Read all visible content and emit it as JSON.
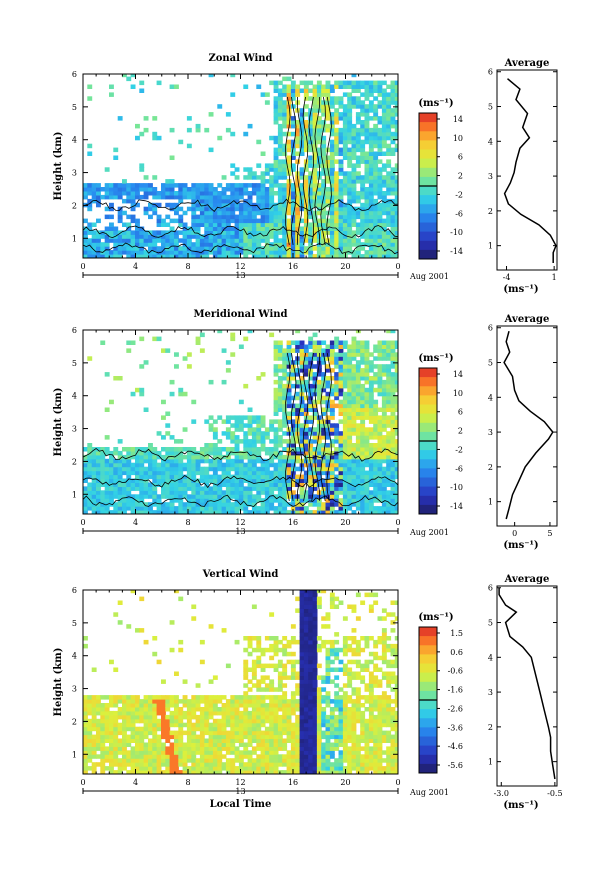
{
  "chart_data": [
    {
      "type": "heatmap",
      "title": "Zonal Wind",
      "ylabel": "Height (km)",
      "xlabel": "",
      "xlim": [
        0,
        24
      ],
      "ylim": [
        0.4,
        6
      ],
      "xticks": [
        "0",
        "4",
        "8",
        "12",
        "16",
        "20",
        "0"
      ],
      "yticks": [
        "1",
        "2",
        "3",
        "4",
        "5",
        "6"
      ],
      "date_bar": {
        "center": "13",
        "right": "Aug 2001"
      },
      "colorbar": {
        "unit": "(ms⁻¹)",
        "labels": [
          "14",
          "10",
          "6",
          "2",
          "-2",
          "-6",
          "-10",
          "-14"
        ],
        "range": [
          -16,
          16
        ]
      },
      "average": {
        "title": "Average",
        "xlabel": "(ms⁻¹)",
        "xticks": [
          "-4",
          "1"
        ],
        "xlim": [
          -5,
          1.3
        ],
        "profile": [
          [
            0.5,
            0.9
          ],
          [
            0.8,
            0.9
          ],
          [
            1.0,
            1.2
          ],
          [
            1.3,
            0.6
          ],
          [
            1.6,
            -0.6
          ],
          [
            1.9,
            -2.5
          ],
          [
            2.2,
            -3.8
          ],
          [
            2.5,
            -4.2
          ],
          [
            2.8,
            -3.6
          ],
          [
            3.1,
            -3.2
          ],
          [
            3.4,
            -3.0
          ],
          [
            3.8,
            -2.6
          ],
          [
            4.1,
            -1.6
          ],
          [
            4.4,
            -2.3
          ],
          [
            4.8,
            -1.8
          ],
          [
            5.2,
            -3.0
          ],
          [
            5.5,
            -2.6
          ],
          [
            5.8,
            -3.9
          ]
        ]
      }
    },
    {
      "type": "heatmap",
      "title": "Meridional Wind",
      "ylabel": "Height (km)",
      "xlabel": "",
      "xlim": [
        0,
        24
      ],
      "ylim": [
        0.4,
        6
      ],
      "xticks": [
        "0",
        "4",
        "8",
        "12",
        "16",
        "20",
        "0"
      ],
      "yticks": [
        "1",
        "2",
        "3",
        "4",
        "5",
        "6"
      ],
      "date_bar": {
        "center": "13",
        "right": "Aug 2001"
      },
      "colorbar": {
        "unit": "(ms⁻¹)",
        "labels": [
          "14",
          "10",
          "6",
          "2",
          "-2",
          "-6",
          "-10",
          "-14"
        ],
        "range": [
          -16,
          16
        ]
      },
      "average": {
        "title": "Average",
        "xlabel": "(ms⁻¹)",
        "xticks": [
          "0",
          "5"
        ],
        "xlim": [
          -2.5,
          6
        ],
        "profile": [
          [
            0.5,
            -1.2
          ],
          [
            0.8,
            -0.8
          ],
          [
            1.2,
            -0.3
          ],
          [
            1.6,
            0.6
          ],
          [
            2.0,
            1.5
          ],
          [
            2.4,
            3.0
          ],
          [
            2.8,
            4.8
          ],
          [
            3.0,
            5.4
          ],
          [
            3.3,
            4.2
          ],
          [
            3.6,
            2.2
          ],
          [
            3.9,
            0.6
          ],
          [
            4.2,
            0.0
          ],
          [
            4.6,
            -0.3
          ],
          [
            5.0,
            -1.5
          ],
          [
            5.3,
            -0.7
          ],
          [
            5.6,
            -1.2
          ],
          [
            5.9,
            -0.8
          ]
        ]
      }
    },
    {
      "type": "heatmap",
      "title": "Vertical Wind",
      "ylabel": "Height (km)",
      "xlabel": "Local Time",
      "xlim": [
        0,
        24
      ],
      "ylim": [
        0.4,
        6
      ],
      "xticks": [
        "0",
        "4",
        "8",
        "12",
        "16",
        "20",
        "0"
      ],
      "yticks": [
        "1",
        "2",
        "3",
        "4",
        "5",
        "6"
      ],
      "date_bar": {
        "center": "13",
        "right": "Aug 2001"
      },
      "colorbar": {
        "unit": "(ms⁻¹)",
        "labels": [
          "1.5",
          "0.6",
          "-0.6",
          "-1.6",
          "-2.6",
          "-3.6",
          "-4.6",
          "-5.6"
        ],
        "range": [
          -6.1,
          2.0
        ]
      },
      "average": {
        "title": "Average",
        "xlabel": "(ms⁻¹)",
        "xticks": [
          "-3.0",
          "-0.5"
        ],
        "xlim": [
          -3.2,
          -0.4
        ],
        "profile": [
          [
            0.5,
            -0.5
          ],
          [
            0.9,
            -0.6
          ],
          [
            1.3,
            -0.7
          ],
          [
            1.7,
            -0.7
          ],
          [
            2.0,
            -0.8
          ],
          [
            2.5,
            -1.0
          ],
          [
            3.0,
            -1.2
          ],
          [
            3.5,
            -1.4
          ],
          [
            4.0,
            -1.6
          ],
          [
            4.3,
            -2.0
          ],
          [
            4.6,
            -2.6
          ],
          [
            5.0,
            -2.8
          ],
          [
            5.3,
            -2.3
          ],
          [
            5.5,
            -2.8
          ],
          [
            5.8,
            -3.1
          ],
          [
            6.0,
            -3.1
          ]
        ]
      }
    }
  ]
}
